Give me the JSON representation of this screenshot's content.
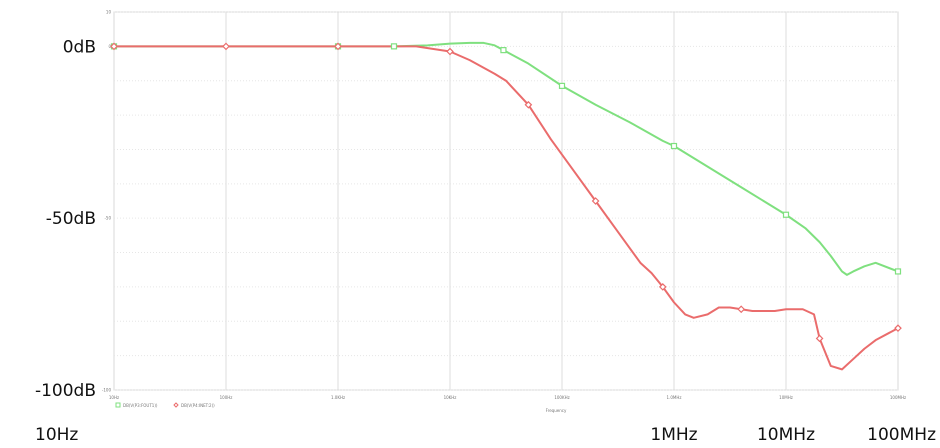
{
  "chart_data": {
    "type": "line",
    "x_scale": "log",
    "xlim": [
      10,
      100000000
    ],
    "ylim": [
      -100,
      10
    ],
    "grid": true,
    "y_axis_labels": [
      {
        "value": 0,
        "text": "0dB"
      },
      {
        "value": -50,
        "text": "-50dB"
      },
      {
        "value": -100,
        "text": "-100dB"
      }
    ],
    "x_axis_labels": [
      {
        "value": 10,
        "text": "10Hz"
      },
      {
        "value": 1000000,
        "text": "1MHz"
      },
      {
        "value": 10000000,
        "text": "10MHz"
      },
      {
        "value": 100000000,
        "text": "100MHz"
      }
    ],
    "small_x_tick_labels": [
      "10Hz",
      "100Hz",
      "1.0KHz",
      "10KHz",
      "100KHz",
      "1.0MHz",
      "10MHz",
      "100MHz"
    ],
    "small_y_tick_labels": [
      "10",
      "0",
      "-50",
      "-100"
    ],
    "xlabel_small": "Frequency",
    "legend_small": [
      "DB(V(P3:FOUT1))",
      "DB(V(P4:INET:2))"
    ],
    "series": [
      {
        "color": "#7fe07f",
        "marker": "square",
        "points": [
          [
            10,
            0
          ],
          [
            31.6,
            0
          ],
          [
            100,
            0
          ],
          [
            316,
            0
          ],
          [
            1000,
            0
          ],
          [
            3162,
            0
          ],
          [
            6310,
            0.3
          ],
          [
            10000,
            0.8
          ],
          [
            15000,
            1
          ],
          [
            20000,
            1
          ],
          [
            25000,
            0.3
          ],
          [
            31623,
            -1.5
          ],
          [
            50000,
            -5
          ],
          [
            100000,
            -11.5
          ],
          [
            199526,
            -17
          ],
          [
            398107,
            -22
          ],
          [
            794328,
            -27.5
          ],
          [
            1000000,
            -29
          ],
          [
            1995262,
            -35
          ],
          [
            3981072,
            -41
          ],
          [
            6309573,
            -45
          ],
          [
            10000000,
            -49
          ],
          [
            15000000,
            -53
          ],
          [
            20000000,
            -57
          ],
          [
            25118864,
            -61
          ],
          [
            31622777,
            -65.5
          ],
          [
            35000000,
            -66.5
          ],
          [
            39810717,
            -65.5
          ],
          [
            50118723,
            -64
          ],
          [
            63095734,
            -63
          ],
          [
            100000000,
            -65.5
          ]
        ]
      },
      {
        "color": "#ea6c6c",
        "marker": "diamond",
        "points": [
          [
            10,
            0
          ],
          [
            31.6,
            0
          ],
          [
            100,
            0
          ],
          [
            316,
            0
          ],
          [
            1000,
            0
          ],
          [
            3162,
            0
          ],
          [
            5000,
            0
          ],
          [
            10000,
            -1.5
          ],
          [
            15000,
            -4
          ],
          [
            25119,
            -8
          ],
          [
            31623,
            -10
          ],
          [
            50119,
            -17
          ],
          [
            79433,
            -27
          ],
          [
            125893,
            -36
          ],
          [
            199526,
            -45
          ],
          [
            316228,
            -54
          ],
          [
            501187,
            -63
          ],
          [
            630957,
            -66
          ],
          [
            794328,
            -70
          ],
          [
            1000000,
            -74.5
          ],
          [
            1258925,
            -78
          ],
          [
            1500000,
            -79
          ],
          [
            1995262,
            -78
          ],
          [
            2511886,
            -76
          ],
          [
            3162278,
            -76
          ],
          [
            3981072,
            -76.5
          ],
          [
            5011872,
            -77
          ],
          [
            7943282,
            -77
          ],
          [
            10000000,
            -76.5
          ],
          [
            14125375,
            -76.5
          ],
          [
            17782794,
            -78
          ],
          [
            19952623,
            -85
          ],
          [
            25118864,
            -93
          ],
          [
            31622777,
            -94
          ],
          [
            39810717,
            -91
          ],
          [
            50118723,
            -88
          ],
          [
            63095734,
            -85.5
          ],
          [
            100000000,
            -82
          ]
        ]
      }
    ],
    "marker_points": [
      {
        "series": 0,
        "x": [
          10,
          1000,
          3162,
          30000,
          100000,
          1000000,
          10000000,
          100000000
        ]
      },
      {
        "series": 1,
        "x": [
          10,
          100,
          1000,
          10000,
          50119,
          199526,
          794328,
          3981072,
          19952623,
          100000000
        ]
      }
    ]
  }
}
